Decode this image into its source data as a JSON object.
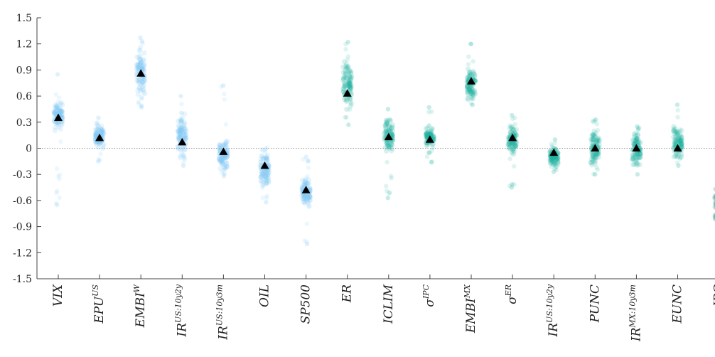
{
  "chart_data": {
    "type": "scatter",
    "title": "",
    "xlabel": "",
    "ylabel": "",
    "ylim": [
      -1.5,
      1.5
    ],
    "yticks": [
      1.5,
      1.2,
      0.9,
      0.6,
      0.3,
      0,
      -0.3,
      -0.6,
      -0.9,
      -1.2,
      -1.5
    ],
    "ytick_labels": [
      "1.5",
      "1.2",
      "0.9",
      "0.6",
      "0.3",
      "0",
      "-0.3",
      "-0.6",
      "-0.9",
      "-1.2",
      "-1.5"
    ],
    "zero_reference_line": true,
    "grid": false,
    "colors": {
      "us_group": "#7ec8f5",
      "mx_group": "#20b2a2",
      "marker": "#000000",
      "axis": "#444444"
    },
    "categories": [
      {
        "base": "VIX",
        "sup": "",
        "group": "us",
        "mean": 0.35,
        "range": [
          -0.65,
          0.85
        ],
        "core": [
          0.15,
          0.6
        ]
      },
      {
        "base": "EPU",
        "sup": "US",
        "group": "us",
        "mean": 0.12,
        "range": [
          -0.15,
          0.35
        ],
        "core": [
          -0.05,
          0.3
        ]
      },
      {
        "base": "EMBI",
        "sup": "W",
        "group": "us",
        "mean": 0.86,
        "range": [
          0.47,
          1.27
        ],
        "core": [
          0.55,
          1.2
        ]
      },
      {
        "base": "IR",
        "sup": "US:10y2y",
        "group": "us",
        "mean": 0.07,
        "range": [
          -0.2,
          0.6
        ],
        "core": [
          -0.15,
          0.45
        ]
      },
      {
        "base": "IR",
        "sup": "US:10y3m",
        "group": "us",
        "mean": -0.04,
        "range": [
          -0.32,
          0.72
        ],
        "core": [
          -0.3,
          0.15
        ]
      },
      {
        "base": "OIL",
        "sup": "",
        "group": "us",
        "mean": -0.2,
        "range": [
          -0.62,
          0.0
        ],
        "core": [
          -0.5,
          0.0
        ]
      },
      {
        "base": "SP500",
        "sup": "",
        "group": "us",
        "mean": -0.48,
        "range": [
          -1.1,
          -0.1
        ],
        "core": [
          -0.75,
          -0.3
        ]
      },
      {
        "base": "ER",
        "sup": "",
        "group": "mx",
        "mean": 0.63,
        "range": [
          0.27,
          1.22
        ],
        "core": [
          0.35,
          1.15
        ]
      },
      {
        "base": "ICLIM",
        "sup": "",
        "group": "mx",
        "mean": 0.13,
        "range": [
          -0.57,
          0.45
        ],
        "core": [
          -0.1,
          0.4
        ]
      },
      {
        "base": "σ",
        "sup": "IPC",
        "group": "mx",
        "mean": 0.1,
        "range": [
          -0.16,
          0.47
        ],
        "core": [
          0.0,
          0.25
        ]
      },
      {
        "base": "EMBI",
        "sup": "MX",
        "group": "mx",
        "mean": 0.77,
        "range": [
          0.5,
          1.2
        ],
        "core": [
          0.5,
          0.95
        ]
      },
      {
        "base": "σ",
        "sup": "ER",
        "group": "mx",
        "mean": 0.12,
        "range": [
          -0.45,
          0.38
        ],
        "core": [
          -0.1,
          0.3
        ]
      },
      {
        "base": "IR",
        "sup": "US:10y2y",
        "group": "mx",
        "mean": -0.05,
        "range": [
          -0.27,
          0.1
        ],
        "core": [
          -0.25,
          0.05
        ]
      },
      {
        "base": "PUNC",
        "sup": "",
        "group": "mx",
        "mean": 0.0,
        "range": [
          -0.3,
          0.33
        ],
        "core": [
          -0.25,
          0.25
        ]
      },
      {
        "base": "IR",
        "sup": "MX:10y3m",
        "group": "mx",
        "mean": 0.0,
        "range": [
          -0.3,
          0.25
        ],
        "core": [
          -0.25,
          0.25
        ]
      },
      {
        "base": "EUNC",
        "sup": "",
        "group": "mx",
        "mean": 0.0,
        "range": [
          -0.2,
          0.5
        ],
        "core": [
          -0.15,
          0.3
        ]
      },
      {
        "base": "IPC",
        "sup": "",
        "group": "mx",
        "mean": -0.53,
        "range": [
          -1.0,
          -0.25
        ],
        "core": [
          -0.95,
          -0.3
        ]
      }
    ]
  }
}
